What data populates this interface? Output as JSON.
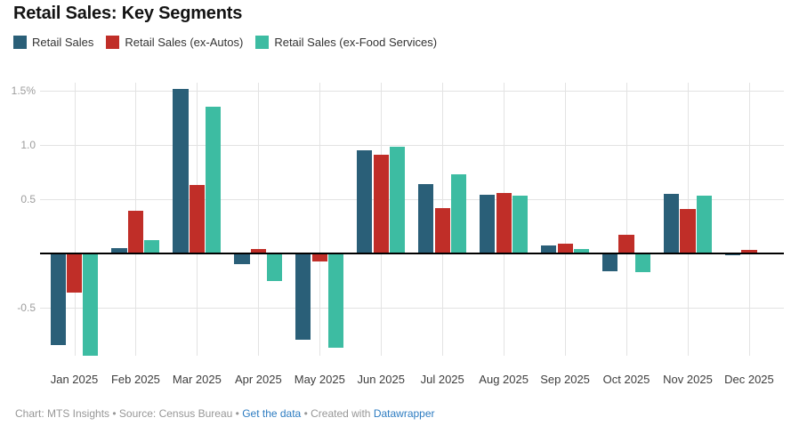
{
  "title": "Retail Sales: Key Segments",
  "legend": [
    {
      "label": "Retail Sales",
      "color": "#2a5f78"
    },
    {
      "label": "Retail Sales (ex-Autos)",
      "color": "#c02e28"
    },
    {
      "label": "Retail Sales (ex-Food Services)",
      "color": "#3dbca2"
    }
  ],
  "chart_data": {
    "type": "bar",
    "title": "Retail Sales: Key Segments",
    "categories": [
      "Jan 2025",
      "Feb 2025",
      "Mar 2025",
      "Apr 2025",
      "May 2025",
      "Jun 2025",
      "Jul 2025",
      "Aug 2025",
      "Sep 2025",
      "Oct 2025",
      "Nov 2025",
      "Dec 2025"
    ],
    "series": [
      {
        "name": "Retail Sales",
        "color": "#2a5f78",
        "values": [
          -0.84,
          0.05,
          1.51,
          -0.1,
          -0.79,
          0.95,
          0.64,
          0.54,
          0.07,
          -0.16,
          0.55,
          -0.02
        ]
      },
      {
        "name": "Retail Sales (ex-Autos)",
        "color": "#c02e28",
        "values": [
          -0.36,
          0.39,
          0.63,
          0.04,
          -0.07,
          0.91,
          0.42,
          0.56,
          0.09,
          0.17,
          0.41,
          0.03
        ]
      },
      {
        "name": "Retail Sales (ex-Food Services)",
        "color": "#3dbca2",
        "values": [
          -0.94,
          0.12,
          1.35,
          -0.25,
          -0.87,
          0.98,
          0.73,
          0.53,
          0.04,
          -0.17,
          0.53,
          0.0
        ]
      }
    ],
    "xlabel": "",
    "ylabel": "",
    "ylim": [
      -1.0,
      1.55
    ],
    "yticks": [
      {
        "v": 1.5,
        "label": "1.5%"
      },
      {
        "v": 1.0,
        "label": "1.0"
      },
      {
        "v": 0.5,
        "label": "0.5"
      },
      {
        "v": -0.5,
        "label": "-0.5"
      }
    ],
    "grid": true,
    "legend_position": "top",
    "unit": "%"
  },
  "footer": {
    "credit": "Chart: MTS Insights",
    "sep1": " • ",
    "source": "Source: Census Bureau",
    "sep2": " • ",
    "get_data_link": "Get the data",
    "sep3": " • ",
    "created_with": "Created with ",
    "datawrapper_link": "Datawrapper",
    "link_color": "#2d7cc1"
  }
}
